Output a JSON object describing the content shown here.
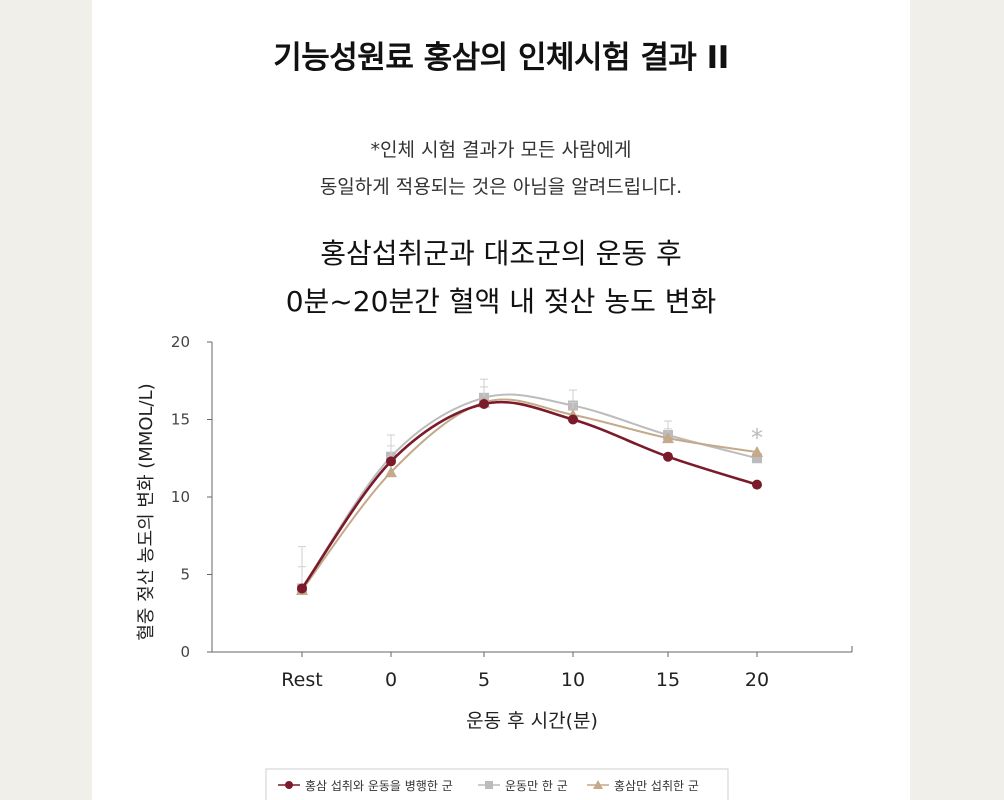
{
  "page": {
    "title": "기능성원료 홍삼의 인체시험 결과 II",
    "note_line1": "*인체 시험 결과가 모든 사람에게",
    "note_line2": "동일하게 적용되는 것은 아님을 알려드립니다."
  },
  "chart_data": {
    "type": "line",
    "title": [
      "홍삼섭취군과 대조군의 운동 후",
      "0분~20분간 혈액 내 젖산 농도 변화"
    ],
    "xlabel": "운동 후 시간(분)",
    "ylabel": "혈중 젖산 농도의 변화 (MMOL/L)",
    "categories": [
      "Rest",
      "0",
      "5",
      "10",
      "15",
      "20"
    ],
    "ylim": [
      0,
      20
    ],
    "yticks": [
      "0",
      "5",
      "10",
      "15",
      "20"
    ],
    "grid": false,
    "legend_position": "bottom",
    "annotation": "*",
    "series": [
      {
        "name": "홍삼 섭취와 운동을 병행한 군",
        "marker": "circle",
        "color": "#7b1a2a",
        "values": [
          4.1,
          12.3,
          16.0,
          15.0,
          12.6,
          10.8
        ],
        "errors": [
          0,
          1.0,
          0,
          0,
          0,
          0
        ]
      },
      {
        "name": "운동만 한 군",
        "marker": "square",
        "color": "#bcbcbc",
        "values": [
          4.1,
          12.6,
          16.4,
          15.9,
          14.0,
          12.5
        ],
        "errors": [
          2.7,
          1.4,
          1.2,
          1.0,
          0.9,
          0
        ]
      },
      {
        "name": "홍삼만 섭취한 군",
        "marker": "triangle",
        "color": "#c4a98a",
        "values": [
          4.0,
          11.6,
          16.1,
          15.3,
          13.8,
          12.9
        ],
        "errors": [
          1.5,
          1.0,
          1.0,
          0.8,
          0.6,
          0
        ]
      }
    ]
  }
}
